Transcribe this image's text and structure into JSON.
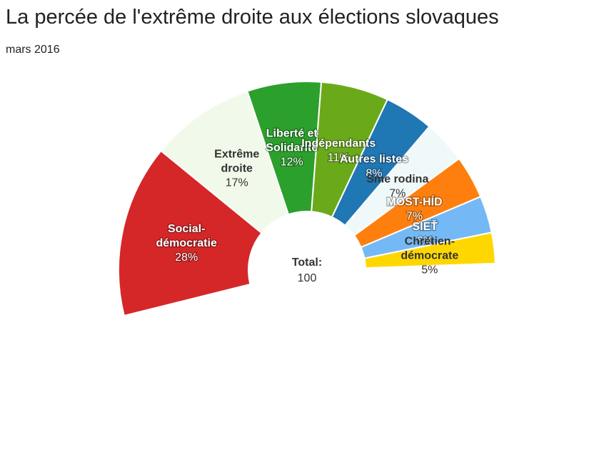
{
  "header": {
    "title": "La percée de l'extrême droite aux élections slovaques",
    "subtitle": "mars 2016"
  },
  "chart_data": {
    "type": "pie",
    "variant": "semicircle-parliament",
    "title": "La percée de l'extrême droite aux élections slovaques",
    "subtitle": "mars 2016",
    "total_label": "Total:",
    "total_value": "100",
    "unit": "%",
    "slices": [
      {
        "name": "Social-démocratie",
        "label_lines": [
          "Social-",
          "démocratie"
        ],
        "value": 28,
        "color": "#d62728",
        "text_color": "#ffffff"
      },
      {
        "name": "Extrême droite",
        "label_lines": [
          "Extrême",
          "droite"
        ],
        "value": 17,
        "color": "#f1faea",
        "text_color": "#333333"
      },
      {
        "name": "Liberté et Solidarité",
        "label_lines": [
          "Liberté et",
          "Solidarité"
        ],
        "value": 12,
        "color": "#2ca02c",
        "text_color": "#ffffff"
      },
      {
        "name": "Indépendants",
        "label_lines": [
          "Indépendants"
        ],
        "value": 11,
        "color": "#6aaa1a",
        "text_color": "#ffffff"
      },
      {
        "name": "Autres listes",
        "label_lines": [
          "Autres listes"
        ],
        "value": 8,
        "color": "#1f77b4",
        "text_color": "#ffffff"
      },
      {
        "name": "Sme rodina",
        "label_lines": [
          "Sme rodina"
        ],
        "value": 7,
        "color": "#f0f9f9",
        "text_color": "#333333"
      },
      {
        "name": "MOST-HÍD",
        "label_lines": [
          "MOST-HÍD"
        ],
        "value": 7,
        "color": "#ff7f0e",
        "text_color": "#ffffff"
      },
      {
        "name": "SIEŤ",
        "label_lines": [
          "SIEŤ"
        ],
        "value": 6,
        "color": "#74b9f5",
        "text_color": "#ffffff"
      },
      {
        "name": "Chrétien-démocrate",
        "label_lines": [
          "Chrétien-",
          "démocrate"
        ],
        "value": 5,
        "color": "#ffd700",
        "text_color": "#333333"
      }
    ]
  }
}
